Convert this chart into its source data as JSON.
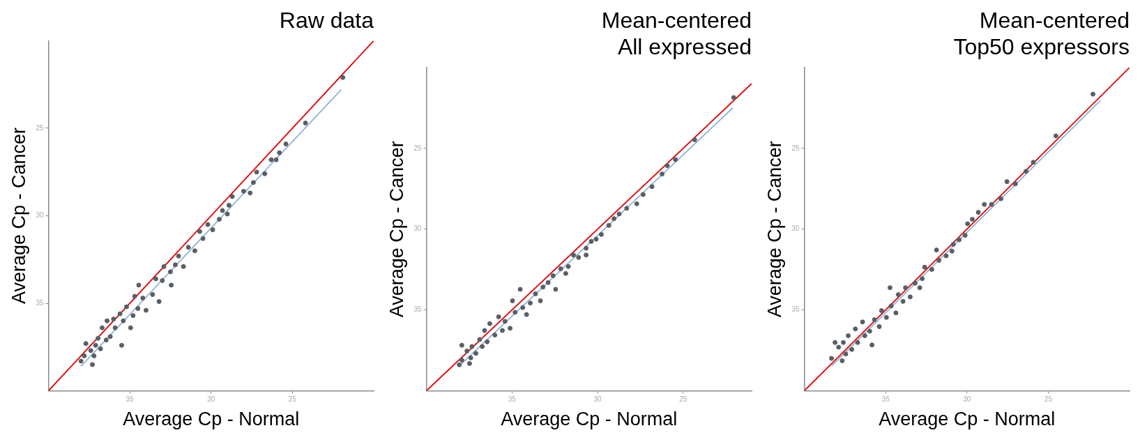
{
  "chart_data": [
    {
      "type": "scatter",
      "title": "Raw data",
      "xlabel": "Average Cp - Normal",
      "ylabel": "Average Cp - Cancer",
      "xlim": [
        40,
        20
      ],
      "ylim": [
        40,
        20
      ],
      "xticks": [
        35,
        30,
        25
      ],
      "yticks": [
        35,
        30,
        25
      ],
      "series": [
        {
          "type": "scatter",
          "marker": "circle",
          "color": "#595f66",
          "x": [
            21.9,
            24.2,
            25.4,
            25.8,
            26.0,
            26.3,
            26.7,
            27.2,
            27.4,
            27.6,
            28.0,
            28.7,
            28.9,
            29.0,
            29.3,
            29.5,
            29.9,
            30.2,
            30.5,
            30.7,
            31.0,
            31.4,
            31.7,
            32.0,
            32.2,
            32.5,
            32.45,
            32.9,
            33.0,
            33.2,
            33.4,
            33.6,
            34.0,
            34.2,
            34.45,
            34.5,
            34.7,
            34.8,
            34.95,
            35.2,
            35.4,
            35.5,
            35.6,
            35.9,
            36.0,
            36.2,
            36.4,
            36.45,
            36.7,
            36.8,
            36.95,
            37.1,
            37.2,
            37.3,
            37.4,
            37.7,
            37.8,
            38.0
          ],
          "values": [
            22.1,
            24.7,
            25.9,
            26.4,
            26.8,
            26.8,
            27.6,
            27.5,
            28.1,
            28.7,
            28.6,
            28.9,
            29.4,
            29.9,
            29.7,
            30.2,
            30.8,
            30.5,
            31.3,
            30.9,
            32.0,
            31.8,
            32.9,
            32.3,
            32.8,
            33.2,
            33.96,
            32.9,
            33.7,
            34.9,
            33.6,
            34.5,
            35.4,
            34.7,
            33.96,
            35.3,
            34.6,
            35.7,
            36.4,
            35.2,
            36.0,
            37.4,
            35.6,
            36.4,
            35.9,
            36.9,
            36.0,
            37.1,
            36.4,
            37.6,
            37.0,
            37.4,
            38.0,
            38.5,
            37.7,
            37.3,
            38.0,
            38.3
          ]
        },
        {
          "type": "line",
          "marker": "none",
          "color": "#e00000",
          "x": [
            40,
            20
          ],
          "values": [
            40,
            20
          ]
        },
        {
          "type": "line",
          "marker": "none",
          "color": "#8fb4d6",
          "x": [
            38.0,
            22.0
          ],
          "values": [
            38.6,
            22.8
          ]
        }
      ]
    },
    {
      "type": "scatter",
      "title": "Mean-centered\nAll expressed",
      "xlabel": "Average Cp - Normal",
      "ylabel": "Average Cp - Cancer",
      "xlim": [
        40,
        21
      ],
      "ylim": [
        40,
        20
      ],
      "xticks": [
        35,
        30,
        25
      ],
      "yticks": [
        35,
        30,
        25
      ],
      "series": [
        {
          "type": "scatter",
          "marker": "circle",
          "color": "#595f66",
          "x": [
            22.05,
            24.33,
            25.45,
            25.93,
            26.23,
            26.82,
            27.34,
            27.71,
            28.3,
            28.74,
            29.04,
            29.34,
            29.78,
            30.08,
            30.37,
            30.67,
            30.67,
            31.11,
            31.41,
            31.71,
            31.86,
            32.15,
            32.45,
            32.6,
            32.89,
            33.19,
            33.34,
            33.63,
            33.93,
            34.15,
            34.37,
            34.52,
            34.82,
            34.97,
            35.11,
            35.41,
            35.56,
            35.78,
            36.0,
            36.3,
            36.45,
            36.6,
            36.74,
            36.89,
            37.11,
            37.34,
            37.41,
            37.48,
            37.63,
            37.93,
            37.93,
            38.08
          ],
          "values": [
            21.86,
            24.47,
            25.7,
            26.07,
            26.59,
            27.37,
            27.86,
            28.43,
            28.71,
            29.06,
            29.35,
            29.77,
            30.33,
            30.62,
            30.76,
            31.18,
            31.6,
            31.75,
            31.6,
            32.31,
            32.74,
            32.45,
            33.72,
            32.88,
            33.3,
            33.58,
            34.43,
            34.0,
            34.57,
            35.28,
            34.85,
            33.72,
            35.14,
            34.43,
            36.13,
            35.7,
            36.27,
            35.42,
            36.55,
            35.84,
            36.97,
            36.27,
            37.26,
            36.83,
            37.68,
            37.26,
            37.96,
            38.31,
            37.54,
            37.18,
            38.1,
            38.39
          ]
        },
        {
          "type": "line",
          "marker": "none",
          "color": "#e00000",
          "x": [
            40,
            21
          ],
          "values": [
            40,
            21
          ]
        },
        {
          "type": "line",
          "marker": "none",
          "color": "#8fb4d6",
          "x": [
            38.08,
            22.1
          ],
          "values": [
            38.46,
            22.5
          ]
        }
      ]
    },
    {
      "type": "scatter",
      "title": "Mean-centered\nTop50 expressors",
      "xlabel": "Average Cp - Normal",
      "ylabel": "Average Cp - Cancer",
      "xlim": [
        40,
        20
      ],
      "ylim": [
        40,
        20
      ],
      "xticks": [
        35,
        30,
        25
      ],
      "yticks": [
        35,
        30,
        25
      ],
      "series": [
        {
          "type": "scatter",
          "marker": "circle",
          "color": "#595f66",
          "x": [
            22.25,
            24.53,
            25.92,
            26.37,
            27.02,
            27.54,
            27.91,
            28.49,
            28.93,
            29.3,
            29.67,
            29.96,
            30.11,
            30.48,
            30.84,
            30.92,
            31.28,
            31.72,
            31.87,
            32.16,
            32.6,
            32.75,
            32.9,
            33.19,
            33.49,
            33.78,
            33.93,
            34.22,
            34.37,
            34.66,
            34.73,
            34.95,
            35.25,
            35.39,
            35.69,
            35.84,
            35.98,
            36.28,
            36.42,
            36.72,
            36.86,
            37.08,
            37.3,
            37.45,
            37.6,
            37.67,
            37.89,
            38.11,
            38.33
          ],
          "values": [
            21.65,
            24.23,
            25.86,
            26.42,
            27.2,
            27.06,
            28.12,
            28.47,
            28.47,
            28.96,
            29.39,
            29.67,
            30.38,
            30.66,
            30.94,
            31.36,
            31.65,
            31.93,
            31.29,
            32.49,
            32.35,
            33.06,
            33.62,
            33.34,
            34.19,
            33.62,
            34.47,
            34.05,
            35.18,
            34.75,
            33.62,
            35.46,
            35.04,
            36.03,
            35.6,
            37.16,
            36.31,
            36.59,
            35.74,
            37.01,
            36.17,
            37.44,
            36.59,
            37.72,
            37.01,
            38.14,
            37.3,
            37.01,
            37.99
          ]
        },
        {
          "type": "line",
          "marker": "none",
          "color": "#e00000",
          "x": [
            40,
            20
          ],
          "values": [
            40,
            20
          ]
        },
        {
          "type": "line",
          "marker": "none",
          "color": "#8fb4d6",
          "x": [
            38.3,
            21.8
          ],
          "values": [
            38.45,
            22.05
          ]
        }
      ]
    }
  ]
}
